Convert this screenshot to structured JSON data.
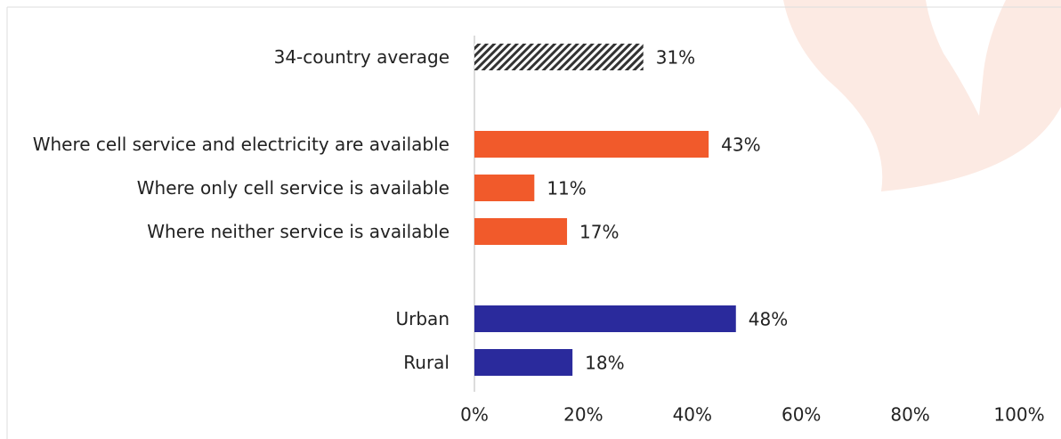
{
  "chart_data": {
    "type": "bar",
    "orientation": "horizontal",
    "categories": [
      "34-country average",
      null,
      "Where cell service and electricity are available",
      "Where only cell service is available",
      "Where neither service is available",
      null,
      "Urban",
      "Rural"
    ],
    "values": [
      31,
      null,
      43,
      11,
      17,
      null,
      48,
      18
    ],
    "value_labels": [
      "31%",
      null,
      "43%",
      "11%",
      "17%",
      null,
      "48%",
      "18%"
    ],
    "colors": [
      "#333333",
      null,
      "#f15a2b",
      "#f15a2b",
      "#f15a2b",
      null,
      "#2a2a9c",
      "#2a2a9c"
    ],
    "hatched": [
      true,
      null,
      false,
      false,
      false,
      null,
      false,
      false
    ],
    "xlim": [
      0,
      100
    ],
    "xticks": [
      {
        "value": 0,
        "label": "0%"
      },
      {
        "value": 20,
        "label": "20%"
      },
      {
        "value": 40,
        "label": "40%"
      },
      {
        "value": 60,
        "label": "60%"
      },
      {
        "value": 80,
        "label": "80%"
      },
      {
        "value": 100,
        "label": "100%"
      }
    ],
    "grid": false
  }
}
